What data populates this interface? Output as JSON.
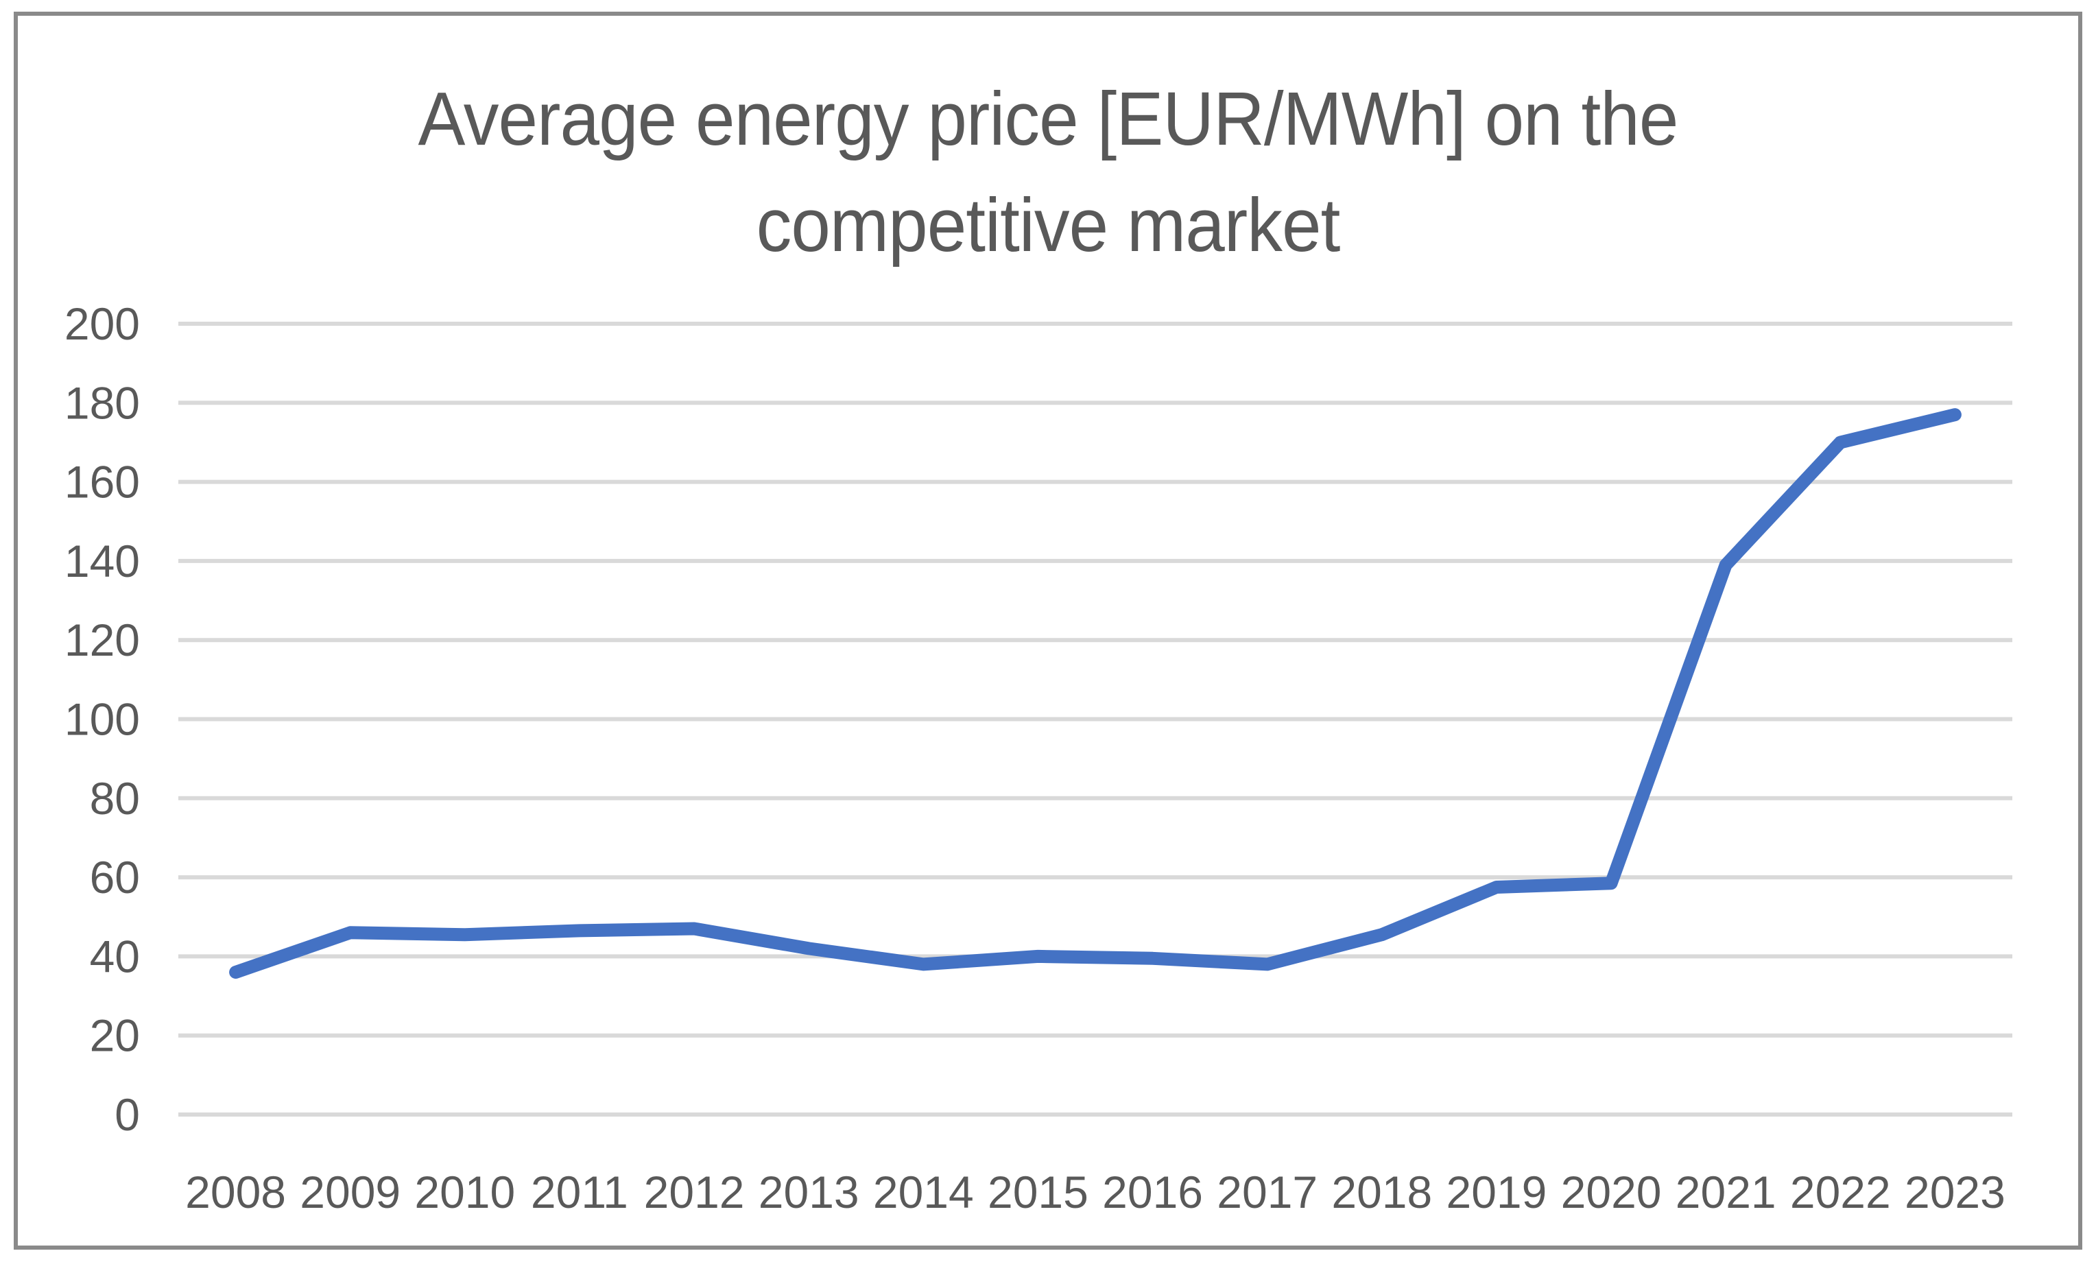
{
  "frame": {
    "border_color": "#8a8a8a"
  },
  "chart_data": {
    "type": "line",
    "title": "Average energy price [EUR/MWh] on the competitive market",
    "title_lines": [
      "Average energy price [EUR/MWh] on the",
      "competitive market"
    ],
    "categories": [
      "2008",
      "2009",
      "2010",
      "2011",
      "2012",
      "2013",
      "2014",
      "2015",
      "2016",
      "2017",
      "2018",
      "2019",
      "2020",
      "2021",
      "2022",
      "2023"
    ],
    "series": [
      {
        "name": "",
        "color": "#4472C4",
        "values": [
          36,
          46,
          45.5,
          46.5,
          47,
          42,
          38,
          40,
          39.5,
          38,
          45.5,
          57.5,
          58.5,
          139,
          170,
          177
        ]
      }
    ],
    "xlabel": "",
    "ylabel": "",
    "ylim": [
      0,
      200
    ],
    "yticks": [
      0,
      20,
      40,
      60,
      80,
      100,
      120,
      140,
      160,
      180,
      200
    ],
    "grid": true,
    "legend_position": "none",
    "gridline_color": "#d9d9d9",
    "axis_text_color": "#595959",
    "title_color": "#595959"
  }
}
